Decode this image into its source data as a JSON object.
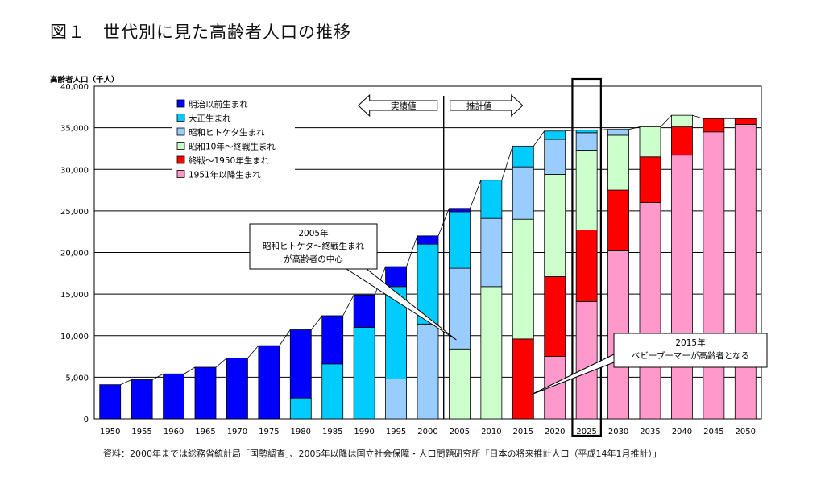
{
  "figure": {
    "title": "図１　世代別に見た高齢者人口の推移",
    "source": "資料：2000年までは総務省統計局「国勢調査」、2005年以降は国立社会保障・人口問題研究所「日本の将来推計人口（平成14年1月推計）」"
  },
  "chart_data": {
    "type": "bar",
    "stacked": true,
    "ylabel": "高齢者人口（千人）",
    "ylim": [
      0,
      40000
    ],
    "yticks": [
      0,
      5000,
      10000,
      15000,
      20000,
      25000,
      30000,
      35000,
      40000
    ],
    "ytick_labels": [
      "0",
      "5,000",
      "10,000",
      "15,000",
      "20,000",
      "25,000",
      "30,000",
      "35,000",
      "40,000"
    ],
    "categories": [
      "1950",
      "1955",
      "1960",
      "1965",
      "1970",
      "1975",
      "1980",
      "1985",
      "1990",
      "1995",
      "2000",
      "2005",
      "2010",
      "2015",
      "2020",
      "2025",
      "2030",
      "2035",
      "2040",
      "2045",
      "2050"
    ],
    "series": [
      {
        "name": "1951年以降生まれ",
        "color": "#ff99cc",
        "values": [
          0,
          0,
          0,
          0,
          0,
          0,
          0,
          0,
          0,
          0,
          0,
          0,
          0,
          0,
          7500,
          14100,
          20200,
          26000,
          31700,
          34500,
          35400
        ]
      },
      {
        "name": "終戦～1950年生まれ",
        "color": "#ff0000",
        "values": [
          0,
          0,
          0,
          0,
          0,
          0,
          0,
          0,
          0,
          0,
          0,
          0,
          0,
          9600,
          9600,
          8600,
          7300,
          5500,
          3400,
          1600,
          700
        ]
      },
      {
        "name": "昭和10年～終戦生まれ",
        "color": "#ccffcc",
        "values": [
          0,
          0,
          0,
          0,
          0,
          0,
          0,
          0,
          0,
          0,
          0,
          8400,
          15900,
          14400,
          12300,
          9600,
          6600,
          3600,
          1400,
          0,
          0
        ]
      },
      {
        "name": "昭和ヒトケタ生まれ",
        "color": "#99ccff",
        "values": [
          0,
          0,
          0,
          0,
          0,
          0,
          0,
          0,
          0,
          4800,
          11400,
          9700,
          8200,
          6300,
          4200,
          2100,
          700,
          0,
          0,
          0,
          0
        ]
      },
      {
        "name": "大正生まれ",
        "color": "#00ccff",
        "values": [
          0,
          0,
          0,
          0,
          0,
          0,
          2500,
          6600,
          11000,
          11100,
          9600,
          6800,
          4600,
          2500,
          1000,
          300,
          0,
          0,
          0,
          0,
          0
        ]
      },
      {
        "name": "明治以前生まれ",
        "color": "#0000ff",
        "values": [
          4100,
          4700,
          5400,
          6200,
          7300,
          8800,
          8200,
          5800,
          3900,
          2400,
          1000,
          400,
          0,
          0,
          0,
          0,
          0,
          0,
          0,
          0,
          0
        ]
      }
    ],
    "legend_order": [
      "明治以前生まれ",
      "大正生まれ",
      "昭和ヒトケタ生まれ",
      "昭和10年～終戦生まれ",
      "終戦～1950年生まれ",
      "1951年以降生まれ"
    ],
    "divider": {
      "after_category": "2000",
      "left_label": "実績値",
      "right_label": "推計値"
    },
    "highlight_category": "2025",
    "callouts": [
      {
        "lines": [
          "2005年",
          "昭和ヒトケタ～終戦生まれ",
          "が高齢者の中心"
        ],
        "target_category": "2005"
      },
      {
        "lines": [
          "2015年",
          "ベビーブーマーが高齢者となる"
        ],
        "target_category": "2015"
      }
    ]
  }
}
